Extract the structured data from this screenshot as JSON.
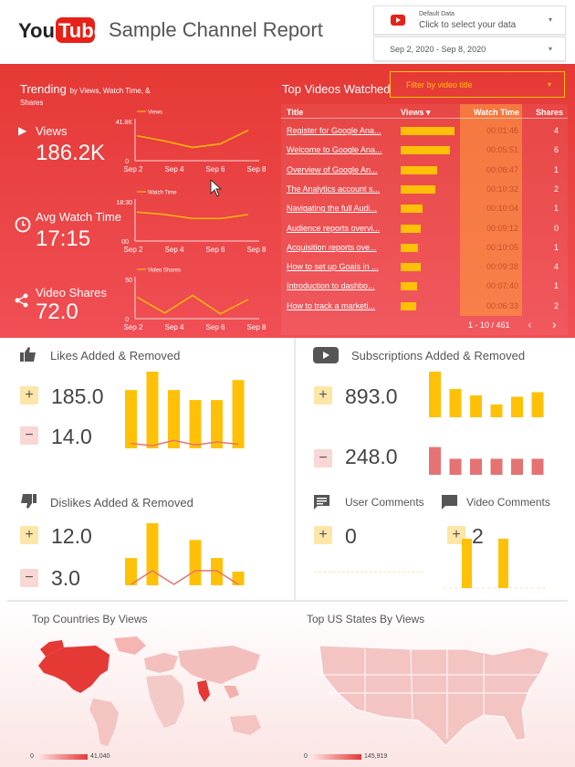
{
  "header": {
    "logo_text": "YouTube",
    "title": "Sample Channel Report",
    "data_source": {
      "label": "Default Data",
      "action": "Click to select your data"
    },
    "date_range": "Sep 2, 2020 - Sep 8, 2020"
  },
  "trending": {
    "title": "Trending",
    "subtitle_a": "by Views, Watch Time, &",
    "subtitle_b": "Shares",
    "metrics": [
      {
        "label": "Views",
        "value": "186.2K",
        "legend": "Views",
        "ymax": "41.8K",
        "ymin": "0"
      },
      {
        "label": "Avg Watch Time",
        "value": "17:15",
        "legend": "Watch Time",
        "ymax": "18:30",
        "ymin": "00"
      },
      {
        "label": "Video Shares",
        "value": "72.0",
        "legend": "Video Shares",
        "ymax": "50",
        "ymin": "0"
      }
    ],
    "x_ticks": [
      "Sep 2",
      "Sep 4",
      "Sep 6",
      "Sep 8"
    ]
  },
  "top_videos": {
    "title": "Top Videos Watched",
    "filter_label": "Filter by video title",
    "columns": {
      "title": "Title",
      "views": "Views ▾",
      "watch": "Watch Time",
      "shares": "Shares"
    },
    "rows": [
      {
        "title": "Register for Google Ana...",
        "views": 1.0,
        "watch": "00:01:46",
        "shares": "4"
      },
      {
        "title": "Welcome to Google Ana...",
        "views": 0.92,
        "watch": "00:05:51",
        "shares": "6"
      },
      {
        "title": "Overview of Google An...",
        "views": 0.68,
        "watch": "00:06:47",
        "shares": "1"
      },
      {
        "title": "The Analytics account s...",
        "views": 0.64,
        "watch": "00:10:32",
        "shares": "2"
      },
      {
        "title": "Navigating the full Audi...",
        "views": 0.41,
        "watch": "00:10:04",
        "shares": "1"
      },
      {
        "title": "Audience reports overvi...",
        "views": 0.37,
        "watch": "00:09:12",
        "shares": "0"
      },
      {
        "title": "Acquisition reports ove...",
        "views": 0.33,
        "watch": "00:10:05",
        "shares": "1"
      },
      {
        "title": "How to set up Goals in ...",
        "views": 0.37,
        "watch": "00:09:38",
        "shares": "4"
      },
      {
        "title": "Introduction to dashbo...",
        "views": 0.31,
        "watch": "00:07:40",
        "shares": "1"
      },
      {
        "title": "How to track a marketi...",
        "views": 0.29,
        "watch": "00:06:33",
        "shares": "2"
      }
    ],
    "pagination": "1 - 10 / 461"
  },
  "likes": {
    "title": "Likes Added & Removed",
    "added": "185.0",
    "removed": "14.0",
    "bars": [
      0.76,
      1.0,
      0.76,
      0.63,
      0.63,
      0.89
    ],
    "line": [
      0.04,
      0.01,
      0.08,
      0.02,
      0.06,
      0.03
    ]
  },
  "subs": {
    "title": "Subscriptions Added & Removed",
    "added": "893.0",
    "removed": "248.0",
    "bars_added": [
      1.0,
      0.62,
      0.48,
      0.28,
      0.45,
      0.55
    ],
    "bars_removed": [
      0.95,
      0.55,
      0.55,
      0.55,
      0.55,
      0.55
    ]
  },
  "dislikes": {
    "title": "Dislikes Added & Removed",
    "added": "12.0",
    "removed": "3.0",
    "bars": [
      0.44,
      1.0,
      0.0,
      0.73,
      0.44,
      0.22
    ],
    "line": [
      0.0,
      0.22,
      0.0,
      0.22,
      0.22,
      0.0
    ]
  },
  "comments": {
    "user_title": "User Comments",
    "user_value": "0",
    "video_title": "Video Comments",
    "video_value": "2",
    "video_bars": [
      0,
      1.0,
      0,
      1.0,
      0,
      0
    ]
  },
  "maps": {
    "countries_title": "Top Countries By Views",
    "countries_min": "0",
    "countries_max": "41,040",
    "states_title": "Top US States By Views",
    "states_min": "0",
    "states_max": "145,919"
  },
  "colors": {
    "red": "#e53935",
    "yellow": "#ffc107",
    "pink": "#e57373"
  }
}
